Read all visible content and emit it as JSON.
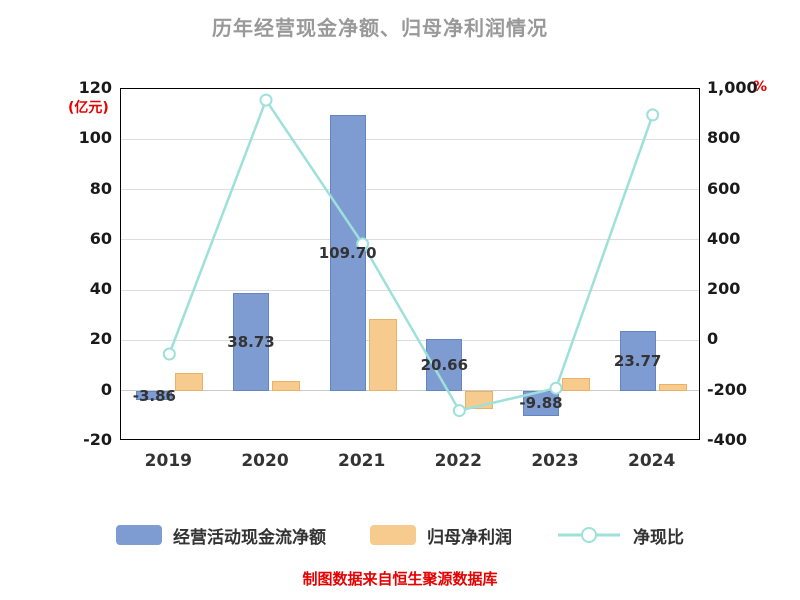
{
  "title": "历年经营现金净额、归母净利润情况",
  "footer": "制图数据来自恒生聚源数据库",
  "chart_data": {
    "type": "bar+line",
    "categories": [
      "2019",
      "2020",
      "2021",
      "2022",
      "2023",
      "2024"
    ],
    "series": [
      {
        "key": "operating-cash-flow",
        "name": "经营活动现金流净额",
        "type": "bar",
        "axis": "left",
        "color": "#7E9CD1",
        "border": "#6286C2",
        "values": [
          -3.86,
          38.73,
          109.7,
          20.66,
          -9.88,
          23.77
        ],
        "labels": [
          "-3.86",
          "38.73",
          "109.70",
          "20.66",
          "-9.88",
          "23.77"
        ]
      },
      {
        "key": "net-profit",
        "name": "归母净利润",
        "type": "bar",
        "axis": "left",
        "color": "#F7CB8E",
        "border": "#E9B267",
        "values": [
          7.2,
          4.05,
          28.6,
          -7.4,
          5.2,
          2.65
        ]
      },
      {
        "key": "cash-ratio",
        "name": "净现比",
        "type": "line",
        "axis": "right",
        "color": "#9EE0DA",
        "marker_fill": "#ffffff",
        "values": [
          -54,
          956,
          384,
          -279,
          -190,
          897
        ]
      }
    ],
    "left_axis": {
      "label": "(亿元)",
      "min": -20,
      "max": 120,
      "step": 20
    },
    "right_axis": {
      "label": "%",
      "min": -400,
      "max": 1000,
      "step": 200
    },
    "grid": true,
    "legend_position": "bottom"
  }
}
